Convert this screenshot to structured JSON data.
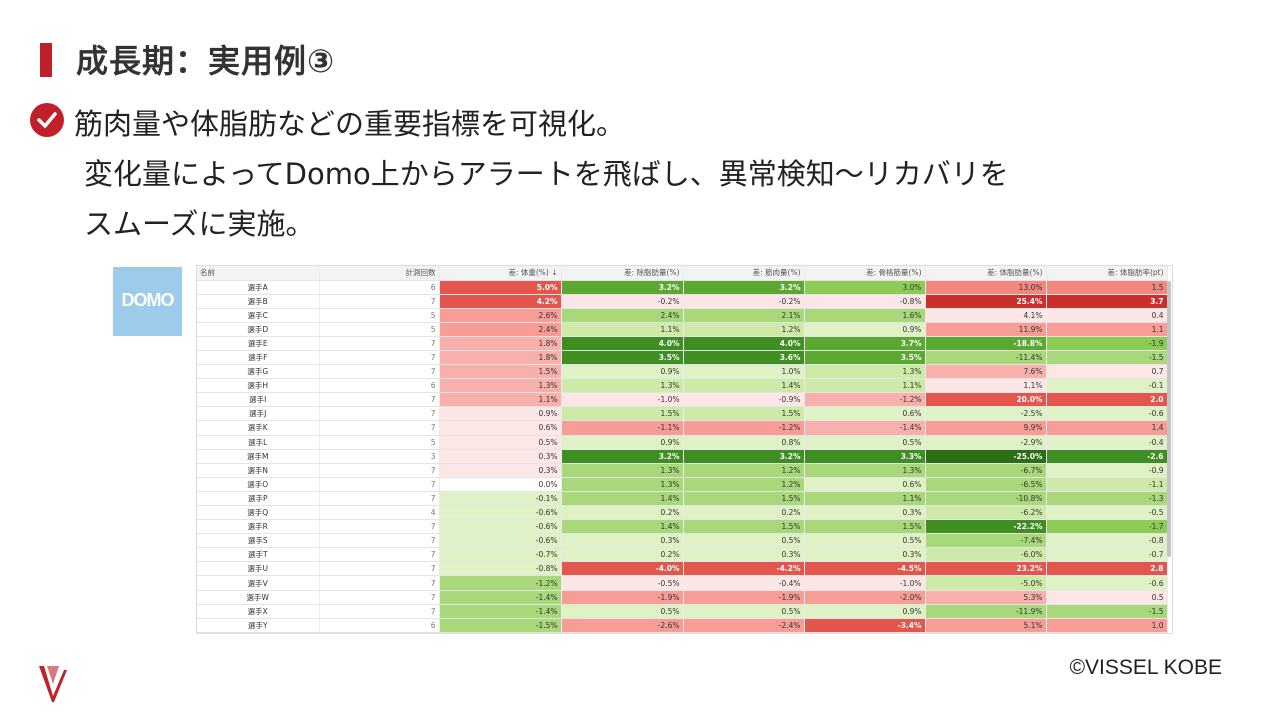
{
  "slide": {
    "title": "成長期：実用例③",
    "lines": [
      "筋肉量や体脂肪などの重要指標を可視化。",
      "変化量によってDomo上からアラートを飛ばし、異常検知～リカバリを",
      "スムーズに実施。"
    ],
    "logo_text": "DOMO",
    "copyright": "©VISSEL KOBE",
    "accent_color": "#c0202a"
  },
  "table": {
    "columns": [
      "名前",
      "計測回数",
      "差: 体重(%) ↓",
      "差: 除脂肪量(%)",
      "差: 筋肉量(%)",
      "差: 骨格筋量(%)",
      "差: 体脂肪量(%)",
      "差: 体脂肪率(pt)"
    ],
    "rows": [
      {
        "name": "選手A",
        "count": "6",
        "vals": [
          "5.0%",
          "3.2%",
          "3.2%",
          "3.0%",
          "13.0%",
          "1.5"
        ],
        "colors": [
          "#e2564d",
          "#5aa82f",
          "#5aa82f",
          "#8ccc55",
          "#f2877e",
          "#f2877e"
        ]
      },
      {
        "name": "選手B",
        "count": "7",
        "vals": [
          "4.2%",
          "-0.2%",
          "-0.2%",
          "-0.8%",
          "25.4%",
          "3.7"
        ],
        "colors": [
          "#e2564d",
          "#fde6e6",
          "#fde6e6",
          "#fde6e6",
          "#c9302c",
          "#c9302c"
        ]
      },
      {
        "name": "選手C",
        "count": "5",
        "vals": [
          "2.6%",
          "2.4%",
          "2.1%",
          "1.6%",
          "4.1%",
          "0.4"
        ],
        "colors": [
          "#f79d96",
          "#a9d87a",
          "#a9d87a",
          "#a9d87a",
          "#fde6e6",
          "#fde6e6"
        ]
      },
      {
        "name": "選手D",
        "count": "5",
        "vals": [
          "2.4%",
          "1.1%",
          "1.2%",
          "0.9%",
          "11.9%",
          "1.1"
        ],
        "colors": [
          "#f79d96",
          "#cdeaa8",
          "#cdeaa8",
          "#dff2c6",
          "#f79d96",
          "#f79d96"
        ]
      },
      {
        "name": "選手E",
        "count": "7",
        "vals": [
          "1.8%",
          "4.0%",
          "4.0%",
          "3.7%",
          "-18.8%",
          "-1.9"
        ],
        "colors": [
          "#f7b0ab",
          "#3e8e22",
          "#3e8e22",
          "#5aa82f",
          "#5aa82f",
          "#8ccc55"
        ]
      },
      {
        "name": "選手F",
        "count": "7",
        "vals": [
          "1.8%",
          "3.5%",
          "3.6%",
          "3.5%",
          "-11.4%",
          "-1.5"
        ],
        "colors": [
          "#f7b0ab",
          "#3e8e22",
          "#3e8e22",
          "#5aa82f",
          "#a9d87a",
          "#a9d87a"
        ]
      },
      {
        "name": "選手G",
        "count": "7",
        "vals": [
          "1.5%",
          "0.9%",
          "1.0%",
          "1.3%",
          "7.6%",
          "0.7"
        ],
        "colors": [
          "#f7b0ab",
          "#dff2c6",
          "#dff2c6",
          "#cdeaa8",
          "#f7b0ab",
          "#fde6e6"
        ]
      },
      {
        "name": "選手H",
        "count": "6",
        "vals": [
          "1.3%",
          "1.3%",
          "1.4%",
          "1.1%",
          "1.1%",
          "-0.1"
        ],
        "colors": [
          "#f7b0ab",
          "#cdeaa8",
          "#cdeaa8",
          "#cdeaa8",
          "#fde6e6",
          "#dff2c6"
        ]
      },
      {
        "name": "選手I",
        "count": "7",
        "vals": [
          "1.1%",
          "-1.0%",
          "-0.9%",
          "-1.2%",
          "20.0%",
          "2.0"
        ],
        "colors": [
          "#f7b0ab",
          "#fde6e6",
          "#fde6e6",
          "#f7b0ab",
          "#e2564d",
          "#e2564d"
        ]
      },
      {
        "name": "選手J",
        "count": "7",
        "vals": [
          "0.9%",
          "1.5%",
          "1.5%",
          "0.6%",
          "-2.5%",
          "-0.6"
        ],
        "colors": [
          "#fde6e6",
          "#cdeaa8",
          "#cdeaa8",
          "#dff2c6",
          "#dff2c6",
          "#dff2c6"
        ]
      },
      {
        "name": "選手K",
        "count": "7",
        "vals": [
          "0.6%",
          "-1.1%",
          "-1.2%",
          "-1.4%",
          "9.9%",
          "1.4"
        ],
        "colors": [
          "#fde6e6",
          "#f79d96",
          "#f79d96",
          "#f7b0ab",
          "#f79d96",
          "#f79d96"
        ]
      },
      {
        "name": "選手L",
        "count": "5",
        "vals": [
          "0.5%",
          "0.9%",
          "0.8%",
          "0.5%",
          "-2.9%",
          "-0.4"
        ],
        "colors": [
          "#fde6e6",
          "#dff2c6",
          "#dff2c6",
          "#dff2c6",
          "#dff2c6",
          "#dff2c6"
        ]
      },
      {
        "name": "選手M",
        "count": "3",
        "vals": [
          "0.3%",
          "3.2%",
          "3.2%",
          "3.3%",
          "-25.0%",
          "-2.6"
        ],
        "colors": [
          "#fde6e6",
          "#3e8e22",
          "#3e8e22",
          "#3e8e22",
          "#2b6e14",
          "#3e8e22"
        ]
      },
      {
        "name": "選手N",
        "count": "7",
        "vals": [
          "0.3%",
          "1.3%",
          "1.2%",
          "1.3%",
          "-6.7%",
          "-0.9"
        ],
        "colors": [
          "#fde6e6",
          "#a9d87a",
          "#a9d87a",
          "#a9d87a",
          "#a9d87a",
          "#dff2c6"
        ]
      },
      {
        "name": "選手O",
        "count": "7",
        "vals": [
          "0.0%",
          "1.3%",
          "1.2%",
          "0.6%",
          "-6.5%",
          "-1.1"
        ],
        "colors": [
          "#ffffff",
          "#a9d87a",
          "#a9d87a",
          "#dff2c6",
          "#a9d87a",
          "#cdeaa8"
        ]
      },
      {
        "name": "選手P",
        "count": "7",
        "vals": [
          "-0.1%",
          "1.4%",
          "1.5%",
          "1.1%",
          "-10.8%",
          "-1.3"
        ],
        "colors": [
          "#dff2c6",
          "#a9d87a",
          "#a9d87a",
          "#a9d87a",
          "#a9d87a",
          "#a9d87a"
        ]
      },
      {
        "name": "選手Q",
        "count": "4",
        "vals": [
          "-0.6%",
          "0.2%",
          "0.2%",
          "0.3%",
          "-6.2%",
          "-0.5"
        ],
        "colors": [
          "#dff2c6",
          "#dff2c6",
          "#dff2c6",
          "#dff2c6",
          "#cdeaa8",
          "#dff2c6"
        ]
      },
      {
        "name": "選手R",
        "count": "7",
        "vals": [
          "-0.6%",
          "1.4%",
          "1.5%",
          "1.5%",
          "-22.2%",
          "-1.7"
        ],
        "colors": [
          "#dff2c6",
          "#a9d87a",
          "#a9d87a",
          "#a9d87a",
          "#3e8e22",
          "#8ccc55"
        ]
      },
      {
        "name": "選手S",
        "count": "7",
        "vals": [
          "-0.6%",
          "0.3%",
          "0.5%",
          "0.5%",
          "-7.4%",
          "-0.8"
        ],
        "colors": [
          "#dff2c6",
          "#dff2c6",
          "#dff2c6",
          "#dff2c6",
          "#a9d87a",
          "#dff2c6"
        ]
      },
      {
        "name": "選手T",
        "count": "7",
        "vals": [
          "-0.7%",
          "0.2%",
          "0.3%",
          "0.3%",
          "-6.0%",
          "-0.7"
        ],
        "colors": [
          "#dff2c6",
          "#dff2c6",
          "#dff2c6",
          "#dff2c6",
          "#cdeaa8",
          "#dff2c6"
        ]
      },
      {
        "name": "選手U",
        "count": "7",
        "vals": [
          "-0.8%",
          "-4.0%",
          "-4.2%",
          "-4.5%",
          "23.2%",
          "2.8"
        ],
        "colors": [
          "#dff2c6",
          "#e2564d",
          "#e2564d",
          "#e2564d",
          "#e2564d",
          "#e2564d"
        ]
      },
      {
        "name": "選手V",
        "count": "7",
        "vals": [
          "-1.2%",
          "-0.5%",
          "-0.4%",
          "-1.0%",
          "-5.0%",
          "-0.6"
        ],
        "colors": [
          "#a9d87a",
          "#fde6e6",
          "#fde6e6",
          "#fde6e6",
          "#cdeaa8",
          "#dff2c6"
        ]
      },
      {
        "name": "選手W",
        "count": "7",
        "vals": [
          "-1.4%",
          "-1.9%",
          "-1.9%",
          "-2.0%",
          "5.3%",
          "0.5"
        ],
        "colors": [
          "#a9d87a",
          "#f79d96",
          "#f79d96",
          "#f79d96",
          "#f7b0ab",
          "#fde6e6"
        ]
      },
      {
        "name": "選手X",
        "count": "7",
        "vals": [
          "-1.4%",
          "0.5%",
          "0.5%",
          "0.9%",
          "-11.9%",
          "-1.5"
        ],
        "colors": [
          "#a9d87a",
          "#dff2c6",
          "#dff2c6",
          "#dff2c6",
          "#a9d87a",
          "#a9d87a"
        ]
      },
      {
        "name": "選手Y",
        "count": "6",
        "vals": [
          "-1.5%",
          "-2.6%",
          "-2.4%",
          "-3.4%",
          "5.1%",
          "1.0"
        ],
        "colors": [
          "#a9d87a",
          "#f79d96",
          "#f79d96",
          "#e2564d",
          "#f79d96",
          "#f79d96"
        ]
      }
    ]
  }
}
